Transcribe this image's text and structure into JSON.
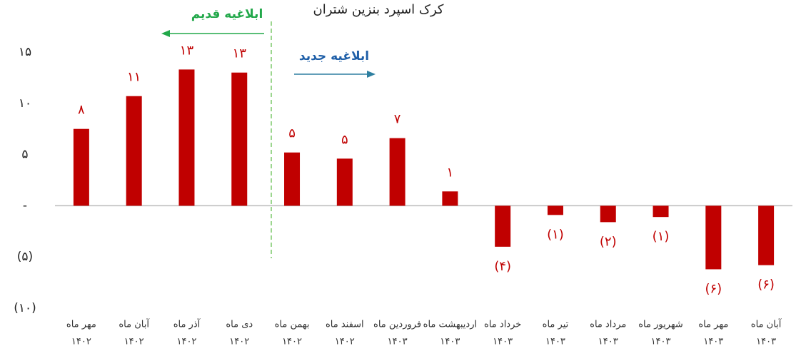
{
  "chart_data": {
    "type": "bar",
    "title": "کرک اسپرد بنزین شتران",
    "annotations": [
      "ابلاغیه قدیم",
      "ابلاغیه جدید"
    ],
    "categories": [
      [
        "مهر ماه",
        "۱۴۰۲"
      ],
      [
        "آبان ماه",
        "۱۴۰۲"
      ],
      [
        "آذر ماه",
        "۱۴۰۲"
      ],
      [
        "دی ماه",
        "۱۴۰۲"
      ],
      [
        "بهمن ماه",
        "۱۴۰۲"
      ],
      [
        "اسفند ماه",
        "۱۴۰۲"
      ],
      [
        "فروردین ماه",
        "۱۴۰۳"
      ],
      [
        "اردیبهشت ماه",
        "۱۴۰۳"
      ],
      [
        "خرداد ماه",
        "۱۴۰۳"
      ],
      [
        "تیر ماه",
        "۱۴۰۳"
      ],
      [
        "مرداد ماه",
        "۱۴۰۳"
      ],
      [
        "شهریور ماه",
        "۱۴۰۳"
      ],
      [
        "مهر ماه",
        "۱۴۰۳"
      ],
      [
        "آبان ماه",
        "۱۴۰۳"
      ]
    ],
    "values": [
      7.5,
      10.7,
      13.3,
      13.0,
      5.2,
      4.6,
      6.6,
      1.4,
      -4.0,
      -0.9,
      -1.6,
      -1.1,
      -6.2,
      -5.8
    ],
    "value_labels": [
      "۸",
      "۱۱",
      "۱۳",
      "۱۳",
      "۵",
      "۵",
      "۷",
      "۱",
      "(۴)",
      "(۱)",
      "(۲)",
      "(۱)",
      "(۶)",
      "(۶)"
    ],
    "color": "#c00000",
    "ylim": [
      -10,
      15
    ],
    "yticks": [
      {
        "value": 15,
        "label": "۱۵"
      },
      {
        "value": 10,
        "label": "۱۰"
      },
      {
        "value": 5,
        "label": "۵"
      },
      {
        "value": 0,
        "label": "-"
      },
      {
        "value": -5,
        "label": "(۵)"
      },
      {
        "value": -10,
        "label": "(۱۰)"
      }
    ]
  }
}
